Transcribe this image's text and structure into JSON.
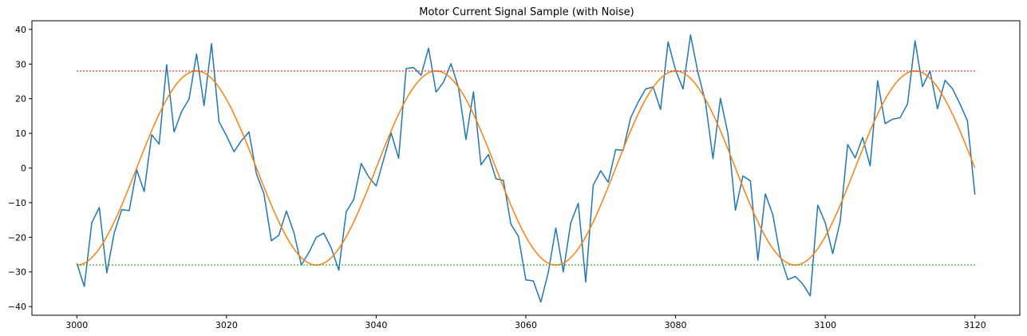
{
  "chart_data": {
    "type": "line",
    "title": "Motor Current Signal Sample (with Noise)",
    "xlabel": "",
    "ylabel": "",
    "xlim": [
      2994,
      3126
    ],
    "ylim": [
      -42.5,
      42.5
    ],
    "xticks": [
      3000,
      3020,
      3040,
      3060,
      3080,
      3100,
      3120
    ],
    "yticks": [
      -40,
      -30,
      -20,
      -10,
      0,
      10,
      20,
      30,
      40
    ],
    "grid": false,
    "legend": "none",
    "series": [
      {
        "role": "noisy",
        "color": "#1f77b4",
        "style": "solid",
        "x": [
          3000,
          3001,
          3002,
          3003,
          3004,
          3005,
          3006,
          3007,
          3008,
          3009,
          3010,
          3011,
          3012,
          3013,
          3014,
          3015,
          3016,
          3017,
          3018,
          3019,
          3020,
          3021,
          3022,
          3023,
          3024,
          3025,
          3026,
          3027,
          3028,
          3029,
          3030,
          3031,
          3032,
          3033,
          3034,
          3035,
          3036,
          3037,
          3038,
          3039,
          3040,
          3041,
          3042,
          3043,
          3044,
          3045,
          3046,
          3047,
          3048,
          3049,
          3050,
          3051,
          3052,
          3053,
          3054,
          3055,
          3056,
          3057,
          3058,
          3059,
          3060,
          3061,
          3062,
          3063,
          3064,
          3065,
          3066,
          3067,
          3068,
          3069,
          3070,
          3071,
          3072,
          3073,
          3074,
          3075,
          3076,
          3077,
          3078,
          3079,
          3080,
          3081,
          3082,
          3083,
          3084,
          3085,
          3086,
          3087,
          3088,
          3089,
          3090,
          3091,
          3092,
          3093,
          3094,
          3095,
          3096,
          3097,
          3098,
          3099,
          3100,
          3101,
          3102,
          3103,
          3104,
          3105,
          3106,
          3107,
          3108,
          3109,
          3110,
          3111,
          3112,
          3113,
          3114,
          3115,
          3116,
          3117,
          3118,
          3119,
          3120
        ],
        "values": [
          -27.5,
          -34.2,
          -15.8,
          -11.4,
          -30.3,
          -18.7,
          -12.0,
          -12.3,
          -0.5,
          -6.8,
          9.6,
          6.9,
          29.8,
          10.4,
          16.3,
          19.9,
          32.9,
          18.0,
          35.9,
          13.4,
          9.3,
          4.7,
          7.9,
          10.4,
          -1.7,
          -7.4,
          -21.0,
          -19.4,
          -12.4,
          -18.6,
          -28.0,
          -24.4,
          -20.0,
          -18.8,
          -23.1,
          -29.5,
          -12.6,
          -9.1,
          1.3,
          -2.6,
          -5.2,
          2.5,
          10.1,
          2.8,
          28.7,
          29.0,
          26.8,
          34.6,
          21.9,
          24.8,
          30.1,
          23.2,
          8.2,
          22.0,
          0.9,
          3.9,
          -3.1,
          -3.6,
          -16.2,
          -19.7,
          -32.3,
          -32.6,
          -38.7,
          -30.1,
          -17.3,
          -30.0,
          -15.8,
          -10.2,
          -32.9,
          -5.0,
          -0.8,
          -4.1,
          5.3,
          5.1,
          14.5,
          19.0,
          22.8,
          23.4,
          16.9,
          36.4,
          28.3,
          22.8,
          38.4,
          27.5,
          19.0,
          2.7,
          20.1,
          9.9,
          -12.2,
          -2.3,
          -3.7,
          -26.6,
          -7.5,
          -13.5,
          -25.5,
          -32.2,
          -31.3,
          -33.5,
          -36.9,
          -10.7,
          -15.8,
          -24.7,
          -15.4,
          6.8,
          2.9,
          8.8,
          0.6,
          25.2,
          12.8,
          14.1,
          14.5,
          18.5,
          36.7,
          23.5,
          28.0,
          17.1,
          25.3,
          22.9,
          18.5,
          13.6,
          -7.7
        ]
      },
      {
        "role": "clean",
        "color": "#ff7f0e",
        "style": "solid",
        "amplitude": 28,
        "period": 32,
        "phase_start": 3000
      },
      {
        "role": "upper-threshold",
        "color": "#d62728",
        "style": "dotted",
        "value": 28,
        "x_range": [
          3000,
          3120
        ]
      },
      {
        "role": "lower-threshold",
        "color": "#2ca02c",
        "style": "dotted",
        "value": -28,
        "x_range": [
          3000,
          3120
        ]
      }
    ]
  }
}
